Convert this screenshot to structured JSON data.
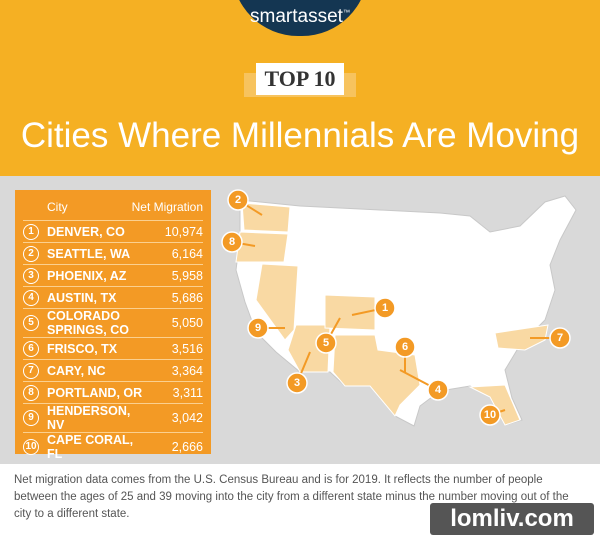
{
  "header": {
    "brand": "smartasset",
    "trademark": "™",
    "badge": "TOP 10",
    "title": "Cities Where Millennials Are Moving"
  },
  "table": {
    "headers": [
      "City",
      "Net Migration"
    ],
    "rows": [
      [
        "1",
        "DENVER, CO",
        "10,974"
      ],
      [
        "2",
        "SEATTLE, WA",
        "6,164"
      ],
      [
        "3",
        "PHOENIX, AZ",
        "5,958"
      ],
      [
        "4",
        "AUSTIN, TX",
        "5,686"
      ],
      [
        "5",
        "COLORADO SPRINGS, CO",
        "5,050"
      ],
      [
        "6",
        "FRISCO, TX",
        "3,516"
      ],
      [
        "7",
        "CARY, NC",
        "3,364"
      ],
      [
        "8",
        "PORTLAND, OR",
        "3,311"
      ],
      [
        "9",
        "HENDERSON, NV",
        "3,042"
      ],
      [
        "10",
        "CAPE CORAL, FL",
        "2,666"
      ]
    ]
  },
  "map": {
    "markers": [
      "1",
      "2",
      "3",
      "4",
      "5",
      "6",
      "7",
      "8",
      "9",
      "10"
    ]
  },
  "footnote": "Net migration data comes from the U.S. Census Bureau and is for 2019. It reflects the number of people between the ages of 25 and 39 moving into the city from a different state minus the number moving out of the city to a different state.",
  "watermark": "lomliv.com"
}
